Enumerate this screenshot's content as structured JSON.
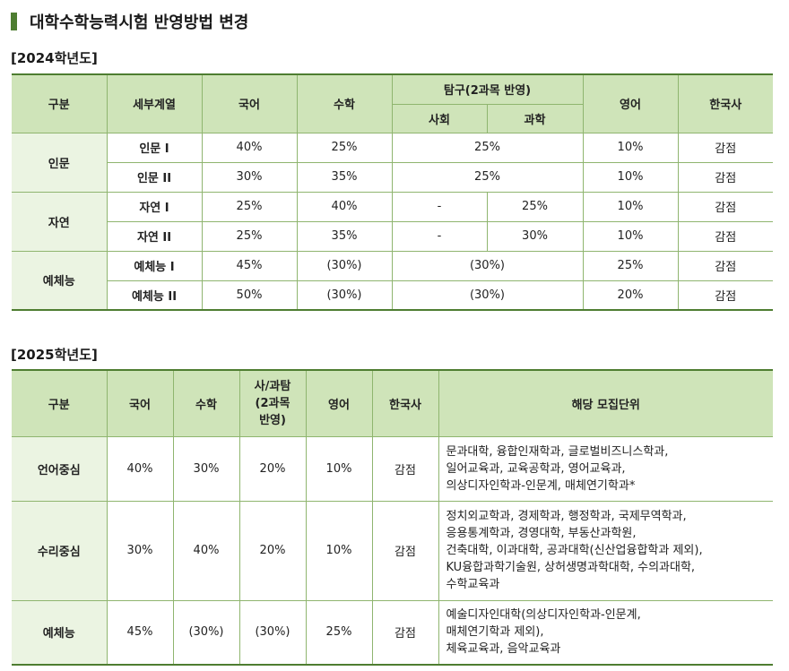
{
  "title": "대학수학능력시험 반영방법 변경",
  "section_2024": {
    "label": "[2024학년도]",
    "headers": {
      "category": "구분",
      "track": "세부계열",
      "korean": "국어",
      "math": "수학",
      "inquiry": "탐구(2과목 반영)",
      "social": "사회",
      "science": "과학",
      "english": "영어",
      "history": "한국사"
    },
    "groups": [
      {
        "name": "인문",
        "rows": [
          {
            "track": "인문 I",
            "korean": "40%",
            "math": "25%",
            "inquiry": "25%",
            "english": "10%",
            "history": "감점"
          },
          {
            "track": "인문 II",
            "korean": "30%",
            "math": "35%",
            "inquiry": "25%",
            "english": "10%",
            "history": "감점"
          }
        ]
      },
      {
        "name": "자연",
        "rows": [
          {
            "track": "자연 I",
            "korean": "25%",
            "math": "40%",
            "social": "-",
            "science": "25%",
            "english": "10%",
            "history": "감점"
          },
          {
            "track": "자연 II",
            "korean": "25%",
            "math": "35%",
            "social": "-",
            "science": "30%",
            "english": "10%",
            "history": "감점"
          }
        ]
      },
      {
        "name": "예체능",
        "rows": [
          {
            "track": "예체능 I",
            "korean": "45%",
            "math": "(30%)",
            "inquiry": "(30%)",
            "english": "25%",
            "history": "감점"
          },
          {
            "track": "예체능 II",
            "korean": "50%",
            "math": "(30%)",
            "inquiry": "(30%)",
            "english": "20%",
            "history": "감점"
          }
        ]
      }
    ]
  },
  "section_2025": {
    "label": "[2025학년도]",
    "headers": {
      "category": "구분",
      "korean": "국어",
      "math": "수학",
      "inquiry_line1": "사/과탐",
      "inquiry_line2": "(2과목",
      "inquiry_line3": "반영)",
      "english": "영어",
      "history": "한국사",
      "units": "해당 모집단위"
    },
    "rows": [
      {
        "category": "언어중심",
        "korean": "40%",
        "math": "30%",
        "inquiry": "20%",
        "english": "10%",
        "history": "감점",
        "units": [
          "문과대학, 융합인재학과, 글로벌비즈니스학과,",
          "일어교육과, 교육공학과, 영어교육과,",
          "의상디자인학과-인문계, 매체연기학과*"
        ]
      },
      {
        "category": "수리중심",
        "korean": "30%",
        "math": "40%",
        "inquiry": "20%",
        "english": "10%",
        "history": "감점",
        "units": [
          "정치외교학과, 경제학과, 행정학과, 국제무역학과,",
          "응용통계학과, 경영대학, 부동산과학원,",
          "건축대학, 이과대학, 공과대학(신산업융합학과 제외),",
          "KU융합과학기술원, 상허생명과학대학, 수의과대학,",
          "수학교육과"
        ]
      },
      {
        "category": "예체능",
        "korean": "45%",
        "math": "(30%)",
        "inquiry": "(30%)",
        "english": "25%",
        "history": "감점",
        "units": [
          "예술디자인대학(의상디자인학과-인문계,",
          "매체연기학과 제외),",
          "체육교육과, 음악교육과"
        ]
      }
    ]
  },
  "colors": {
    "accent": "#4e7d31",
    "header_bg": "#cfe4b9",
    "label_bg": "#ebf4e2",
    "border": "#8fb56f"
  }
}
